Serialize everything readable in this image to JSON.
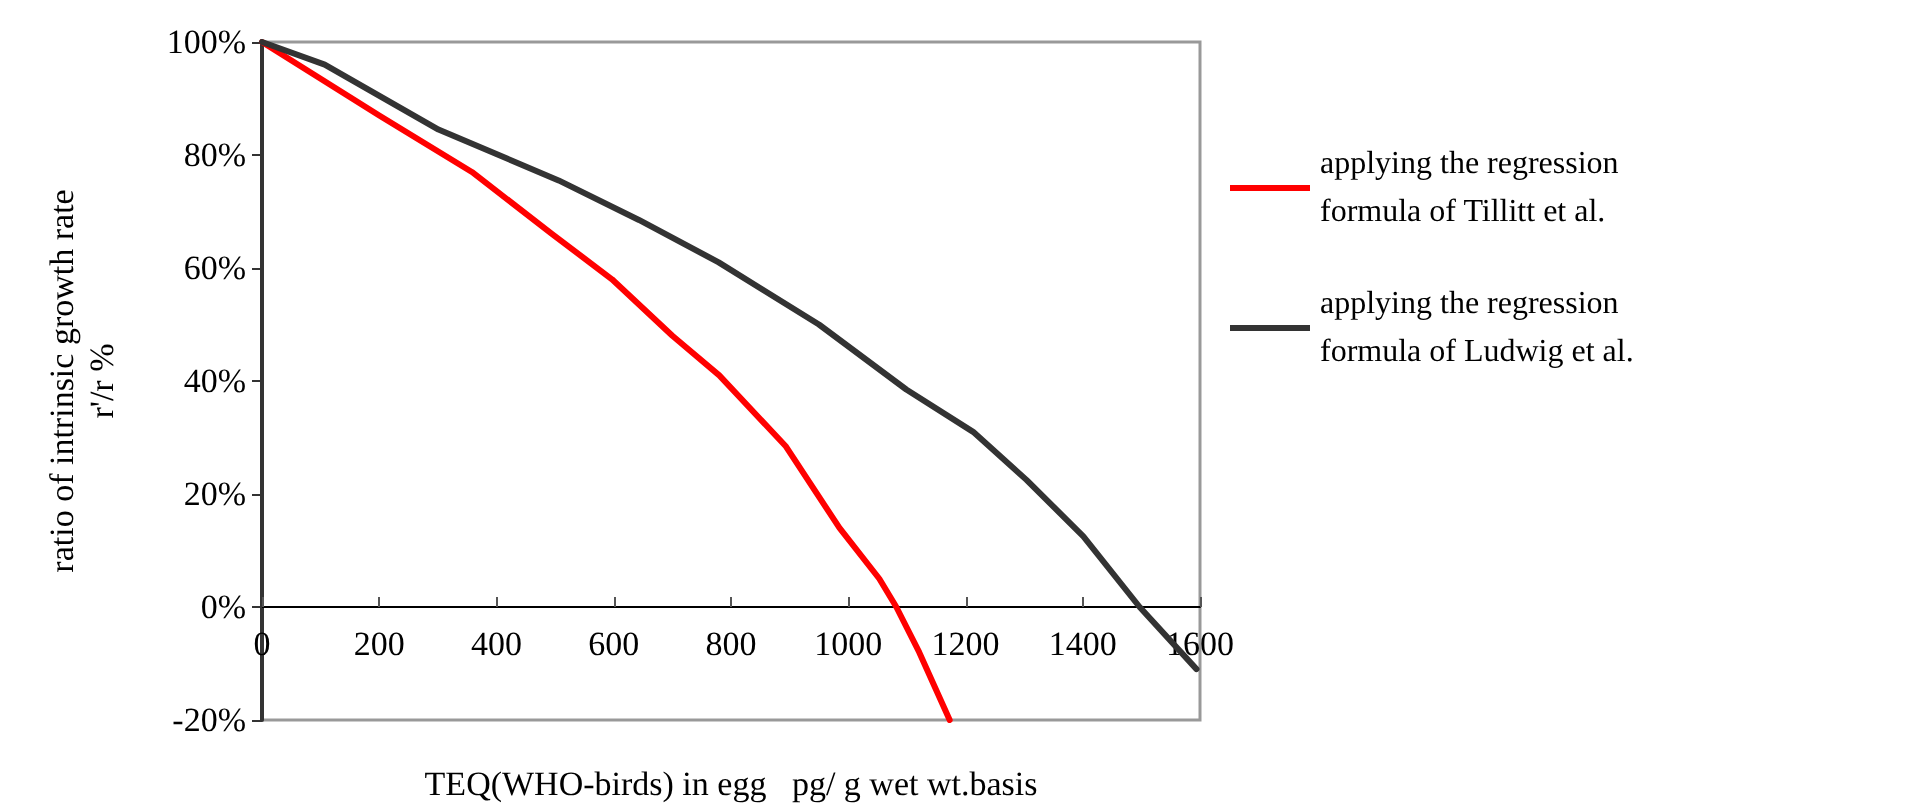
{
  "chart_data": {
    "type": "line",
    "xlabel": "TEQ(WHO-birds) in egg   pg/ g wet wt.basis",
    "ylabel": "ratio of intrinsic growth rate\nr'/r %",
    "xlim": [
      0,
      1600
    ],
    "xticks": [
      0,
      200,
      400,
      600,
      800,
      1000,
      1200,
      1400,
      1600
    ],
    "ylim": [
      -20,
      100
    ],
    "yticks": [
      {
        "value": -20,
        "label": "-20%"
      },
      {
        "value": 0,
        "label": "0%"
      },
      {
        "value": 20,
        "label": "20%"
      },
      {
        "value": 40,
        "label": "40%"
      },
      {
        "value": 60,
        "label": "60%"
      },
      {
        "value": 80,
        "label": "80%"
      },
      {
        "value": 100,
        "label": "100%"
      }
    ],
    "grid": false,
    "legend": "right",
    "marker": "none",
    "line_style": "solid",
    "series": [
      {
        "name": "applying the regression formula of Tillitt et al.",
        "color": "#ff0000",
        "x": [
          0,
          200,
          358,
          495,
          597,
          700,
          780,
          893,
          985,
          1053,
          1082,
          1121,
          1173
        ],
        "values": [
          100,
          87,
          77,
          66,
          58,
          48,
          41,
          28.5,
          14,
          5,
          0,
          -8,
          -20
        ]
      },
      {
        "name": "applying the regression formula of Ludwig et al.",
        "color": "#333333",
        "x": [
          0,
          107,
          301,
          506,
          643,
          779,
          950,
          1099,
          1213,
          1304,
          1401,
          1497,
          1594
        ],
        "values": [
          100,
          96,
          84.5,
          75.5,
          68.5,
          61,
          50,
          38.5,
          31,
          22.5,
          12.5,
          0,
          -11
        ]
      }
    ]
  }
}
